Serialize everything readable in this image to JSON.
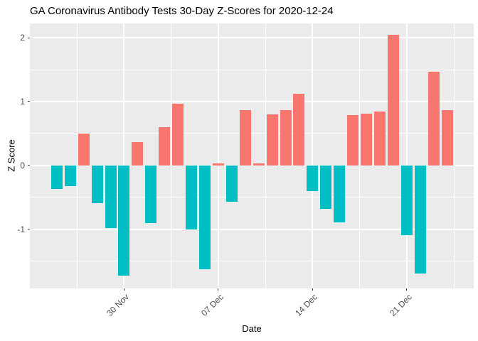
{
  "title": "GA Coronavirus Antibody Tests 30-Day Z-Scores for 2020-12-24",
  "chart_data": {
    "type": "bar",
    "title": "GA Coronavirus Antibody Tests 30-Day Z-Scores for 2020-12-24",
    "xlabel": "Date",
    "ylabel": "Z Score",
    "ylim": [
      -1.93,
      2.22
    ],
    "grid": "on",
    "legend_position": "none",
    "panel_bg_color": "#EBEBEB",
    "grid_color": "#FFFFFF",
    "positive_color": "#F8766D",
    "negative_color": "#00BFC4",
    "y_major_ticks": [
      2,
      1,
      0,
      -1
    ],
    "y_minor_ticks": [
      1.5,
      0.5,
      -0.5,
      -1.5
    ],
    "x_major_ticks": [
      {
        "label": "30 Nov",
        "day_index": 5
      },
      {
        "label": "07 Dec",
        "day_index": 12
      },
      {
        "label": "14 Dec",
        "day_index": 19
      },
      {
        "label": "21 Dec",
        "day_index": 26
      }
    ],
    "x_minor_tick_day_indices": [
      1.5,
      8.5,
      15.5,
      22.5,
      29.5
    ],
    "points": [
      {
        "date": "2020-11-25",
        "z": -0.37
      },
      {
        "date": "2020-11-26",
        "z": -0.33
      },
      {
        "date": "2020-11-27",
        "z": 0.5
      },
      {
        "date": "2020-11-28",
        "z": -0.59
      },
      {
        "date": "2020-11-29",
        "z": -0.98
      },
      {
        "date": "2020-11-30",
        "z": -1.73
      },
      {
        "date": "2020-12-01",
        "z": 0.36
      },
      {
        "date": "2020-12-02",
        "z": -0.9
      },
      {
        "date": "2020-12-03",
        "z": 0.6
      },
      {
        "date": "2020-12-04",
        "z": 0.97
      },
      {
        "date": "2020-12-05",
        "z": -1.01
      },
      {
        "date": "2020-12-06",
        "z": -1.63
      },
      {
        "date": "2020-12-07",
        "z": 0.03
      },
      {
        "date": "2020-12-08",
        "z": -0.57
      },
      {
        "date": "2020-12-09",
        "z": 0.87
      },
      {
        "date": "2020-12-10",
        "z": 0.03
      },
      {
        "date": "2020-12-11",
        "z": 0.8
      },
      {
        "date": "2020-12-12",
        "z": 0.87
      },
      {
        "date": "2020-12-13",
        "z": 1.12
      },
      {
        "date": "2020-12-14",
        "z": -0.4
      },
      {
        "date": "2020-12-15",
        "z": -0.68
      },
      {
        "date": "2020-12-16",
        "z": -0.89
      },
      {
        "date": "2020-12-17",
        "z": 0.79
      },
      {
        "date": "2020-12-18",
        "z": 0.81
      },
      {
        "date": "2020-12-19",
        "z": 0.84
      },
      {
        "date": "2020-12-20",
        "z": 2.05
      },
      {
        "date": "2020-12-21",
        "z": -1.09
      },
      {
        "date": "2020-12-22",
        "z": -1.7
      },
      {
        "date": "2020-12-23",
        "z": 1.47
      },
      {
        "date": "2020-12-24",
        "z": 0.87
      }
    ]
  }
}
